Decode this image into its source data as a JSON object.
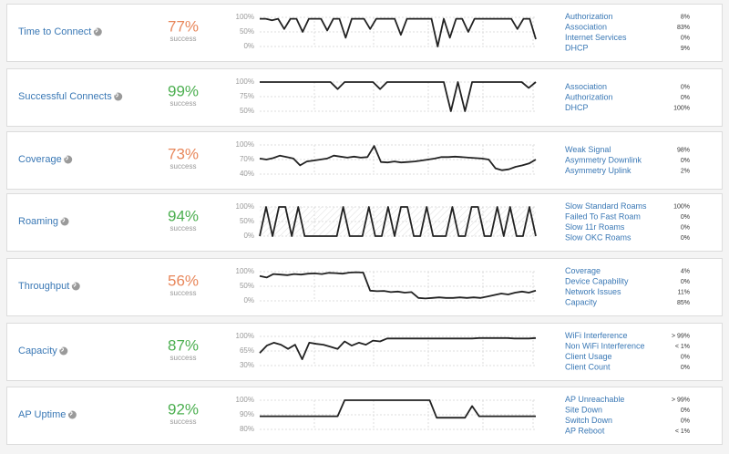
{
  "cards": [
    {
      "title": "Time to Connect",
      "percent": "77%",
      "sub": "success",
      "color": "#e8875b",
      "ylim": [
        0,
        100
      ],
      "yticks": [
        {
          "value": 100,
          "label": "100%"
        },
        {
          "value": 50,
          "label": "50%"
        },
        {
          "value": 0,
          "label": "0%"
        }
      ],
      "values": [
        95,
        95,
        90,
        95,
        60,
        95,
        95,
        50,
        95,
        95,
        95,
        55,
        95,
        95,
        30,
        95,
        95,
        95,
        60,
        95,
        95,
        95,
        95,
        40,
        95,
        95,
        95,
        95,
        95,
        0,
        95,
        30,
        95,
        95,
        50,
        95,
        95,
        95,
        95,
        95,
        95,
        95,
        60,
        95,
        95,
        25
      ],
      "items": [
        {
          "label": "Authorization",
          "value": "8%"
        },
        {
          "label": "Association",
          "value": "83%"
        },
        {
          "label": "Internet Services",
          "value": "0%"
        },
        {
          "label": "DHCP",
          "value": "9%"
        }
      ]
    },
    {
      "title": "Successful Connects",
      "percent": "99%",
      "sub": "success",
      "color": "#4caf50",
      "ylim": [
        50,
        100
      ],
      "yticks": [
        {
          "value": 100,
          "label": "100%"
        },
        {
          "value": 75,
          "label": "75%"
        },
        {
          "value": 50,
          "label": "50%"
        }
      ],
      "values": [
        100,
        100,
        100,
        100,
        100,
        100,
        100,
        100,
        100,
        100,
        100,
        88,
        100,
        100,
        100,
        100,
        100,
        88,
        100,
        100,
        100,
        100,
        100,
        100,
        100,
        100,
        100,
        50,
        100,
        50,
        100,
        100,
        100,
        100,
        100,
        100,
        100,
        100,
        90,
        100
      ],
      "items": [
        {
          "label": "Association",
          "value": "0%"
        },
        {
          "label": "Authorization",
          "value": "0%"
        },
        {
          "label": "DHCP",
          "value": "100%"
        }
      ]
    },
    {
      "title": "Coverage",
      "percent": "73%",
      "sub": "success",
      "color": "#e8875b",
      "ylim": [
        40,
        100
      ],
      "yticks": [
        {
          "value": 100,
          "label": "100%"
        },
        {
          "value": 70,
          "label": "70%"
        },
        {
          "value": 40,
          "label": "40%"
        }
      ],
      "values": [
        72,
        70,
        73,
        78,
        75,
        72,
        58,
        66,
        68,
        70,
        72,
        78,
        76,
        74,
        76,
        74,
        75,
        98,
        65,
        64,
        66,
        64,
        65,
        66,
        68,
        70,
        72,
        75,
        75,
        76,
        75,
        74,
        73,
        72,
        70,
        52,
        48,
        50,
        55,
        58,
        62,
        70
      ],
      "items": [
        {
          "label": "Weak Signal",
          "value": "98%"
        },
        {
          "label": "Asymmetry Downlink",
          "value": "0%"
        },
        {
          "label": "Asymmetry Uplink",
          "value": "2%"
        }
      ]
    },
    {
      "title": "Roaming",
      "percent": "94%",
      "sub": "success",
      "color": "#4caf50",
      "ylim": [
        0,
        100
      ],
      "yticks": [
        {
          "value": 100,
          "label": "100%"
        },
        {
          "value": 50,
          "label": "50%"
        },
        {
          "value": 0,
          "label": "0%"
        }
      ],
      "values": [
        0,
        100,
        0,
        100,
        100,
        0,
        100,
        0,
        0,
        0,
        0,
        0,
        0,
        100,
        0,
        0,
        0,
        100,
        0,
        0,
        100,
        0,
        100,
        100,
        0,
        0,
        100,
        0,
        0,
        0,
        100,
        0,
        0,
        100,
        100,
        0,
        0,
        100,
        0,
        100,
        0,
        0,
        100,
        0
      ],
      "items": [
        {
          "label": "Slow Standard Roams",
          "value": "100%"
        },
        {
          "label": "Failed To Fast Roam",
          "value": "0%"
        },
        {
          "label": "Slow 11r Roams",
          "value": "0%"
        },
        {
          "label": "Slow OKC Roams",
          "value": "0%"
        }
      ]
    },
    {
      "title": "Throughput",
      "percent": "56%",
      "sub": "success",
      "color": "#e8875b",
      "ylim": [
        0,
        100
      ],
      "yticks": [
        {
          "value": 100,
          "label": "100%"
        },
        {
          "value": 50,
          "label": "50%"
        },
        {
          "value": 0,
          "label": "0%"
        }
      ],
      "values": [
        85,
        80,
        92,
        90,
        88,
        92,
        90,
        93,
        94,
        92,
        96,
        95,
        93,
        97,
        98,
        97,
        35,
        33,
        34,
        30,
        32,
        28,
        30,
        10,
        8,
        10,
        12,
        10,
        10,
        12,
        10,
        12,
        10,
        15,
        20,
        25,
        22,
        28,
        32,
        28,
        35
      ],
      "items": [
        {
          "label": "Coverage",
          "value": "4%"
        },
        {
          "label": "Device Capability",
          "value": "0%"
        },
        {
          "label": "Network Issues",
          "value": "11%"
        },
        {
          "label": "Capacity",
          "value": "85%"
        }
      ]
    },
    {
      "title": "Capacity",
      "percent": "87%",
      "sub": "success",
      "color": "#4caf50",
      "ylim": [
        30,
        100
      ],
      "yticks": [
        {
          "value": 100,
          "label": "100%"
        },
        {
          "value": 65,
          "label": "65%"
        },
        {
          "value": 30,
          "label": "30%"
        }
      ],
      "values": [
        60,
        78,
        85,
        80,
        70,
        80,
        45,
        85,
        82,
        80,
        75,
        70,
        88,
        78,
        85,
        80,
        90,
        88,
        95,
        95,
        95,
        95,
        95,
        95,
        95,
        95,
        95,
        95,
        95,
        95,
        95,
        96,
        96,
        96,
        96,
        96,
        95,
        95,
        95,
        96
      ],
      "items": [
        {
          "label": "WiFi Interference",
          "value": "> 99%"
        },
        {
          "label": "Non WiFi Interference",
          "value": "< 1%"
        },
        {
          "label": "Client Usage",
          "value": "0%"
        },
        {
          "label": "Client Count",
          "value": "0%"
        }
      ]
    },
    {
      "title": "AP Uptime",
      "percent": "92%",
      "sub": "success",
      "color": "#4caf50",
      "ylim": [
        80,
        100
      ],
      "yticks": [
        {
          "value": 100,
          "label": "100%"
        },
        {
          "value": 90,
          "label": "90%"
        },
        {
          "value": 80,
          "label": "80%"
        }
      ],
      "values": [
        89,
        89,
        89,
        89,
        89,
        89,
        89,
        89,
        89,
        89,
        89,
        89,
        100,
        100,
        100,
        100,
        100,
        100,
        100,
        100,
        100,
        100,
        100,
        100,
        100,
        88,
        88,
        88,
        88,
        88,
        96,
        89,
        89,
        89,
        89,
        89,
        89,
        89,
        89,
        89
      ],
      "items": [
        {
          "label": "AP Unreachable",
          "value": "> 99%"
        },
        {
          "label": "Site Down",
          "value": "0%"
        },
        {
          "label": "Switch Down",
          "value": "0%"
        },
        {
          "label": "AP Reboot",
          "value": "< 1%"
        }
      ]
    }
  ]
}
